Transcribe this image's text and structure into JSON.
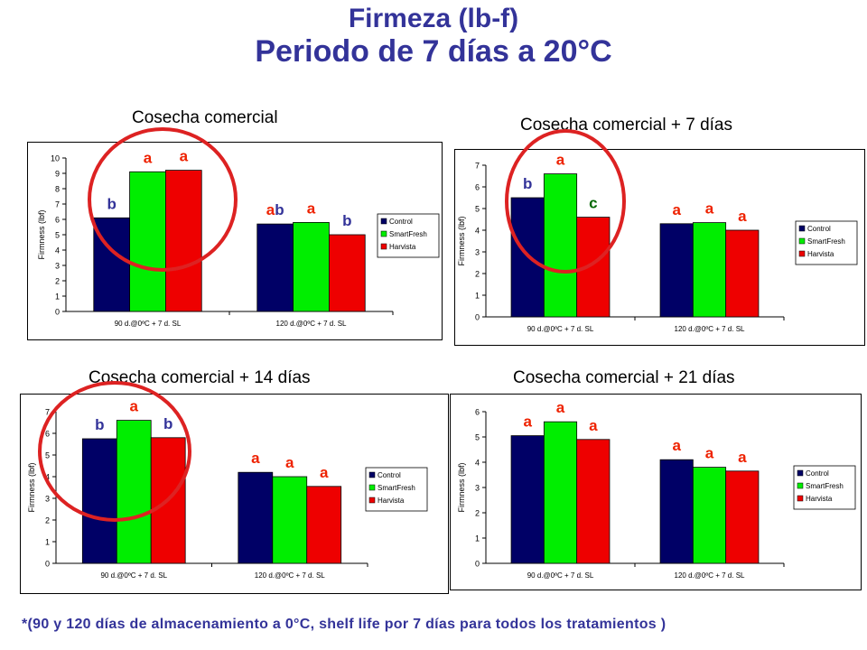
{
  "page": {
    "title_line1": "Firmeza (lb-f)",
    "title_line2": "Periodo de 7 días a 20°C",
    "footnote": "*(90 y 120 días de almacenamiento a 0°C, shelf life por 7 días para todos los tratamientos )"
  },
  "colors": {
    "title": "#333399",
    "Control": "#000066",
    "SmartFresh": "#00ee00",
    "Harvista": "#ee0000",
    "letters_blue": "#333399",
    "letters_red": "#ee2200",
    "letters_green": "#006600",
    "highlight_circle": "#dd2222"
  },
  "chart_data": [
    {
      "type": "bar",
      "caption": "Cosecha comercial",
      "ylabel": "Firmness (lbf)",
      "ylim": [
        0,
        10
      ],
      "ytick_step": 1,
      "categories": [
        "90 d.@0ºC + 7 d. SL",
        "120 d.@0ºC + 7 d. SL"
      ],
      "series": [
        {
          "name": "Control",
          "values": [
            6.1,
            5.7
          ]
        },
        {
          "name": "SmartFresh",
          "values": [
            9.1,
            5.8
          ]
        },
        {
          "name": "Harvista",
          "values": [
            9.2,
            5.0
          ]
        }
      ],
      "letters": [
        [
          {
            "text": "b",
            "color": "blue"
          },
          {
            "text": "a",
            "color": "red"
          },
          {
            "text": "a",
            "color": "red"
          }
        ],
        [
          {
            "text": "ab",
            "color": "mixed"
          },
          {
            "text": "a",
            "color": "red"
          },
          {
            "text": "b",
            "color": "blue"
          }
        ]
      ],
      "legend_position": "right",
      "grid": false,
      "highlight_circle_group": 0
    },
    {
      "type": "bar",
      "caption": "Cosecha comercial + 7 días",
      "ylabel": "Firmness (lbf)",
      "ylim": [
        0,
        7
      ],
      "ytick_step": 1,
      "categories": [
        "90 d.@0ºC + 7 d. SL",
        "120 d.@0ºC + 7 d. SL"
      ],
      "series": [
        {
          "name": "Control",
          "values": [
            5.5,
            4.3
          ]
        },
        {
          "name": "SmartFresh",
          "values": [
            6.6,
            4.35
          ]
        },
        {
          "name": "Harvista",
          "values": [
            4.6,
            4.0
          ]
        }
      ],
      "letters": [
        [
          {
            "text": "b",
            "color": "blue"
          },
          {
            "text": "a",
            "color": "red"
          },
          {
            "text": "c",
            "color": "green"
          }
        ],
        [
          {
            "text": "a",
            "color": "red"
          },
          {
            "text": "a",
            "color": "red"
          },
          {
            "text": "a",
            "color": "red"
          }
        ]
      ],
      "legend_position": "right",
      "grid": false,
      "highlight_circle_group": 0
    },
    {
      "type": "bar",
      "caption": "Cosecha comercial + 14 días",
      "ylabel": "Firmness (lbf)",
      "ylim": [
        0,
        7
      ],
      "ytick_step": 1,
      "categories": [
        "90 d.@0ºC + 7 d. SL",
        "120 d.@0ºC + 7 d. SL"
      ],
      "series": [
        {
          "name": "Control",
          "values": [
            5.75,
            4.2
          ]
        },
        {
          "name": "SmartFresh",
          "values": [
            6.6,
            4.0
          ]
        },
        {
          "name": "Harvista",
          "values": [
            5.8,
            3.55
          ]
        }
      ],
      "letters": [
        [
          {
            "text": "b",
            "color": "blue"
          },
          {
            "text": "a",
            "color": "red"
          },
          {
            "text": "b",
            "color": "blue"
          }
        ],
        [
          {
            "text": "a",
            "color": "red"
          },
          {
            "text": "a",
            "color": "red"
          },
          {
            "text": "a",
            "color": "red"
          }
        ]
      ],
      "legend_position": "right",
      "grid": false,
      "highlight_circle_group": 0
    },
    {
      "type": "bar",
      "caption": "Cosecha comercial + 21 días",
      "ylabel": "Firmness (lbf)",
      "ylim": [
        0,
        6
      ],
      "ytick_step": 1,
      "categories": [
        "90 d.@0ºC + 7 d. SL",
        "120 d.@0ºC + 7 d. SL"
      ],
      "series": [
        {
          "name": "Control",
          "values": [
            5.05,
            4.1
          ]
        },
        {
          "name": "SmartFresh",
          "values": [
            5.6,
            3.8
          ]
        },
        {
          "name": "Harvista",
          "values": [
            4.9,
            3.65
          ]
        }
      ],
      "letters": [
        [
          {
            "text": "a",
            "color": "red"
          },
          {
            "text": "a",
            "color": "red"
          },
          {
            "text": "a",
            "color": "red"
          }
        ],
        [
          {
            "text": "a",
            "color": "red"
          },
          {
            "text": "a",
            "color": "red"
          },
          {
            "text": "a",
            "color": "red"
          }
        ]
      ],
      "legend_position": "right",
      "grid": false,
      "highlight_circle_group": null
    }
  ]
}
